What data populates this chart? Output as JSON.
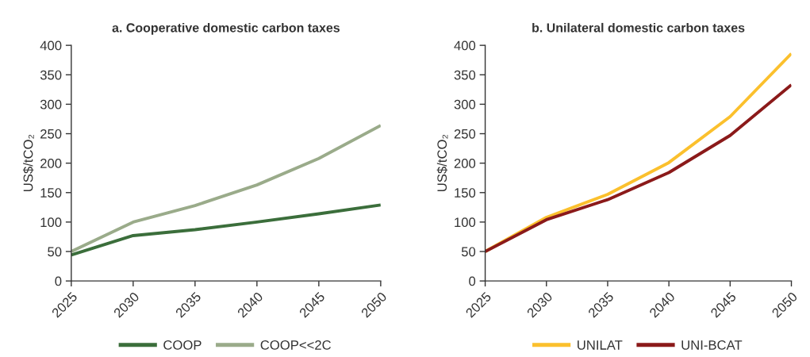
{
  "chart_data": [
    {
      "type": "line",
      "title": "a. Cooperative domestic carbon taxes",
      "ylabel": "US$/tCO₂",
      "x": [
        2025,
        2030,
        2035,
        2040,
        2045,
        2050
      ],
      "xlim": [
        2025,
        2050
      ],
      "xticks": [
        2025,
        2030,
        2035,
        2040,
        2045,
        2050
      ],
      "ylim": [
        0,
        400
      ],
      "yticks": [
        0,
        50,
        100,
        150,
        200,
        250,
        300,
        350,
        400
      ],
      "legend": "bottom",
      "line_style": "solid",
      "series": [
        {
          "name": "COOP",
          "color": "#3b6e3b",
          "values": [
            44,
            77,
            87,
            100,
            114,
            129
          ]
        },
        {
          "name": "COOP<<2C",
          "color": "#9aab8a",
          "values": [
            50,
            100,
            128,
            163,
            208,
            264
          ]
        }
      ]
    },
    {
      "type": "line",
      "title": "b. Unilateral domestic carbon taxes",
      "ylabel": "US$/tCO₂",
      "x": [
        2025,
        2030,
        2035,
        2040,
        2045,
        2050
      ],
      "xlim": [
        2025,
        2050
      ],
      "xticks": [
        2025,
        2030,
        2035,
        2040,
        2045,
        2050
      ],
      "ylim": [
        0,
        400
      ],
      "yticks": [
        0,
        50,
        100,
        150,
        200,
        250,
        300,
        350,
        400
      ],
      "legend": "bottom",
      "line_style": "solid",
      "series": [
        {
          "name": "UNILAT",
          "color": "#fbc02d",
          "values": [
            50,
            108,
            147,
            201,
            279,
            386
          ]
        },
        {
          "name": "UNI-BCAT",
          "color": "#8b1a1a",
          "values": [
            50,
            104,
            138,
            184,
            247,
            333
          ]
        }
      ]
    }
  ]
}
